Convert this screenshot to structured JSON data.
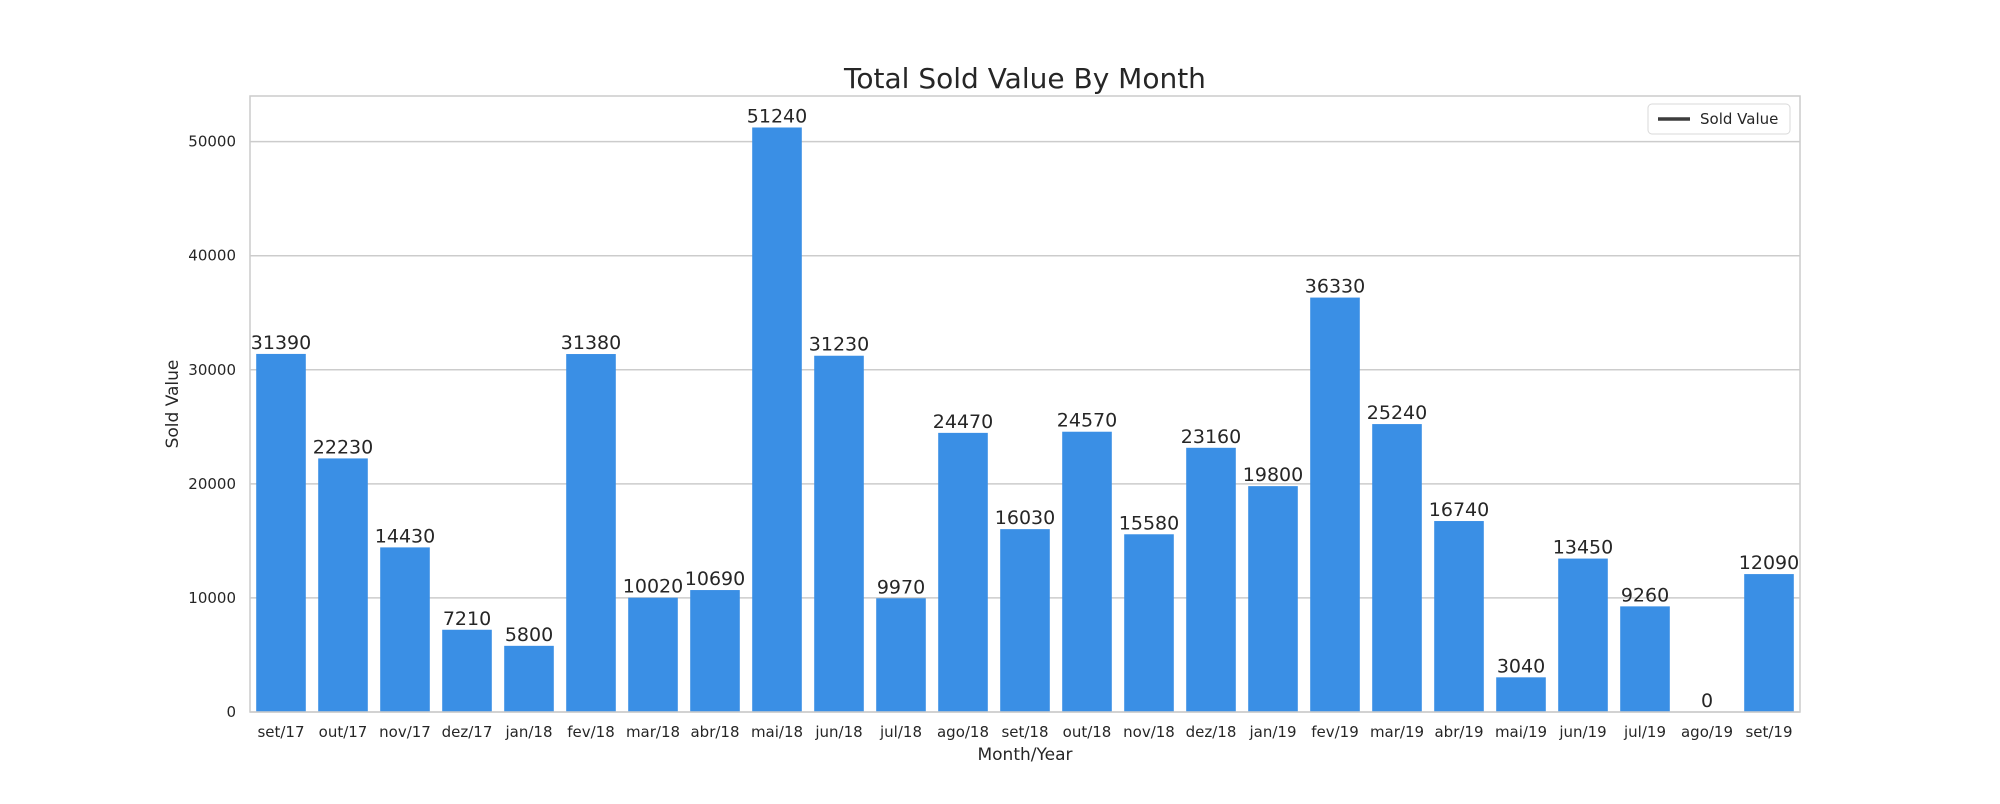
{
  "chart_data": {
    "type": "bar",
    "title": "Total Sold Value By Month",
    "xlabel": "Month/Year",
    "ylabel": "Sold Value",
    "ylim": [
      0,
      54000
    ],
    "yticks": [
      0,
      10000,
      20000,
      30000,
      40000,
      50000
    ],
    "grid": "horizontal",
    "legend_position": "top-right",
    "bar_color": "#3a8fe5",
    "categories": [
      "set/17",
      "out/17",
      "nov/17",
      "dez/17",
      "jan/18",
      "fev/18",
      "mar/18",
      "abr/18",
      "mai/18",
      "jun/18",
      "jul/18",
      "ago/18",
      "set/18",
      "out/18",
      "nov/18",
      "dez/18",
      "jan/19",
      "fev/19",
      "mar/19",
      "abr/19",
      "mai/19",
      "jun/19",
      "jul/19",
      "ago/19",
      "set/19"
    ],
    "series": [
      {
        "name": "Sold Value",
        "values": [
          31390,
          22230,
          14430,
          7210,
          5800,
          31380,
          10020,
          10690,
          51240,
          31230,
          9970,
          24470,
          16030,
          24570,
          15580,
          23160,
          19800,
          36330,
          25240,
          16740,
          3040,
          13450,
          9260,
          0,
          12090
        ]
      }
    ]
  }
}
